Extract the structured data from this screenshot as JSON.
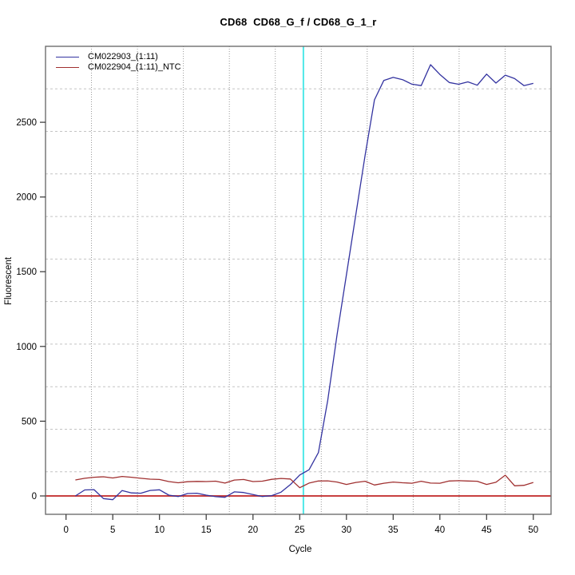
{
  "title": "CD68  CD68_G_f / CD68_G_1_r",
  "chart_data": {
    "type": "line",
    "title": "CD68  CD68_G_f / CD68_G_1_r",
    "xlabel": "Cycle",
    "ylabel": "Fluorescent",
    "x_ticks": [
      0,
      5,
      10,
      15,
      20,
      25,
      30,
      35,
      40,
      45,
      50
    ],
    "y_ticks": [
      0,
      500,
      1000,
      1500,
      2000,
      2500
    ],
    "xlim": [
      -2.2,
      51.9
    ],
    "ylim": [
      -123,
      3008
    ],
    "grid": "on",
    "legend_position": "top-left",
    "x": [
      1,
      2,
      3,
      4,
      5,
      6,
      7,
      8,
      9,
      10,
      11,
      12,
      13,
      14,
      15,
      16,
      17,
      18,
      19,
      20,
      21,
      22,
      23,
      24,
      25,
      26,
      27,
      28,
      29,
      30,
      31,
      32,
      33,
      34,
      35,
      36,
      37,
      38,
      39,
      40,
      41,
      42,
      43,
      44,
      45,
      46,
      47,
      48,
      49,
      50
    ],
    "series": [
      {
        "name": "CM022903_(1:11)",
        "color": "#3333A0",
        "values": [
          0,
          40,
          42,
          -18,
          -25,
          36,
          20,
          18,
          37,
          41,
          5,
          -4,
          16,
          18,
          5,
          -5,
          -9,
          27,
          23,
          9,
          -4,
          2,
          25,
          76,
          140,
          175,
          290,
          640,
          1080,
          1480,
          1880,
          2280,
          2650,
          2780,
          2800,
          2785,
          2755,
          2745,
          2885,
          2820,
          2766,
          2754,
          2770,
          2748,
          2822,
          2762,
          2815,
          2792,
          2745,
          2760
        ]
      },
      {
        "name": "CM022904_(1:11)_NTC",
        "color": "#A03030",
        "values": [
          107,
          118,
          125,
          128,
          120,
          130,
          125,
          118,
          112,
          110,
          96,
          88,
          95,
          97,
          96,
          99,
          86,
          106,
          110,
          96,
          99,
          111,
          117,
          113,
          55,
          86,
          100,
          101,
          93,
          77,
          90,
          98,
          73,
          85,
          93,
          88,
          85,
          98,
          86,
          85,
          100,
          102,
          100,
          98,
          77,
          91,
          139,
          68,
          71,
          90
        ]
      }
    ],
    "annotations": [
      {
        "type": "vline",
        "x": 25.4,
        "color": "#4FE8E8",
        "name": "threshold-cycle-line"
      },
      {
        "type": "hline",
        "y": 0,
        "color": "#C84040",
        "name": "zero-threshold-line"
      }
    ],
    "grid_divisions": 11,
    "colors": {
      "border": "#6E6E6E",
      "tick": "#333333",
      "grid_vertical": "#9A9A9A",
      "grid_horizontal": "#C4C4C4"
    }
  }
}
